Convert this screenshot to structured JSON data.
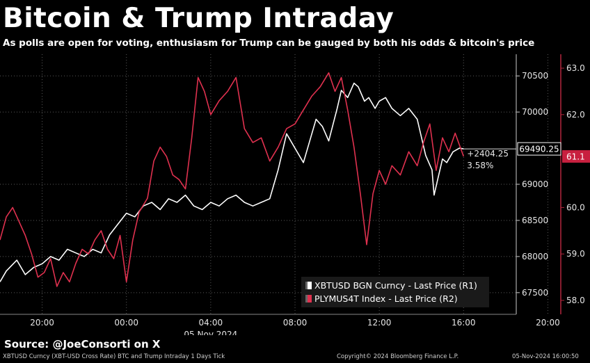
{
  "header": {
    "title": "Bitcoin & Trump Intraday",
    "subtitle": "As polls are open for voting, enthusiasm for Trump can be gauged by both his odds & bitcoin's price"
  },
  "source": "Source: @JoeConsorti on X",
  "footer": {
    "left": "XBTUSD Curncy (XBT-USD Cross Rate) BTC and Trump Intraday 1 Days  Tick",
    "center": "Copyright© 2024 Bloomberg Finance L.P.",
    "right": "05-Nov-2024 16:00:50"
  },
  "colors": {
    "btc": "#ffffff",
    "trump": "#e0314f",
    "background": "#000000"
  },
  "legend": {
    "btc": "XBTUSD BGN Curncy - Last Price (R1)",
    "trump": "PLYMUS4T Index - Last Price (R2)"
  },
  "chart_data": {
    "type": "line",
    "x_axis": {
      "ticks": [
        "20:00",
        "00:00",
        "04:00",
        "08:00",
        "12:00",
        "16:00",
        "20:00"
      ],
      "date_label": "05 Nov 2024",
      "start_hour": 18,
      "end_hour": 22.9
    },
    "right_axis_1": {
      "label": "R1",
      "ticks": [
        "70500",
        "70000",
        "69000",
        "68500",
        "68000",
        "67500"
      ],
      "range": [
        67200,
        70800
      ],
      "current_value": "69490.25",
      "change": "+2404.25",
      "change_pct": "3.58%"
    },
    "right_axis_2": {
      "label": "R2",
      "ticks": [
        "63.0",
        "62.0",
        "60.0",
        "59.0",
        "58.0"
      ],
      "range": [
        57.7,
        63.3
      ],
      "current_value": "61.1"
    },
    "series": [
      {
        "name": "XBTUSD BGN Curncy - Last Price (R1)",
        "axis": "R1",
        "x": [
          18.0,
          18.3,
          18.8,
          19.2,
          19.6,
          20.0,
          20.4,
          20.8,
          21.2,
          21.6,
          22.0,
          22.4,
          22.8,
          23.2,
          23.6,
          24.0,
          24.4,
          24.8,
          25.2,
          25.6,
          26.0,
          26.4,
          26.8,
          27.2,
          27.6,
          28.0,
          28.4,
          28.8,
          29.2,
          29.6,
          30.0,
          30.4,
          30.8,
          31.2,
          31.6,
          32.0,
          32.4,
          32.8,
          33.0,
          33.3,
          33.6,
          34.0,
          34.2,
          34.5,
          34.8,
          35.0,
          35.3,
          35.5,
          35.8,
          36.0,
          36.3,
          36.6,
          37.0,
          37.4,
          37.8,
          38.2,
          38.5,
          38.6,
          38.8,
          39.0,
          39.2,
          39.5,
          39.8,
          40.0
        ],
        "values": [
          67650,
          67800,
          67950,
          67750,
          67850,
          67900,
          68000,
          67950,
          68100,
          68050,
          68000,
          68100,
          68050,
          68300,
          68450,
          68600,
          68550,
          68700,
          68750,
          68650,
          68800,
          68750,
          68850,
          68700,
          68650,
          68750,
          68700,
          68800,
          68850,
          68750,
          68700,
          68750,
          68800,
          69200,
          69700,
          69500,
          69300,
          69700,
          69900,
          69800,
          69600,
          70050,
          70300,
          70200,
          70400,
          70350,
          70150,
          70200,
          70050,
          70150,
          70200,
          70050,
          69950,
          70050,
          69900,
          69400,
          69200,
          68850,
          69100,
          69350,
          69300,
          69450,
          69500,
          69490
        ]
      },
      {
        "name": "PLYMUS4T Index - Last Price (R2)",
        "axis": "R2",
        "x": [
          18.0,
          18.3,
          18.6,
          18.9,
          19.2,
          19.5,
          19.8,
          20.1,
          20.4,
          20.7,
          21.0,
          21.3,
          21.6,
          21.9,
          22.2,
          22.5,
          22.8,
          23.1,
          23.4,
          23.7,
          24.0,
          24.3,
          24.6,
          25.0,
          25.3,
          25.6,
          25.9,
          26.2,
          26.5,
          26.8,
          27.1,
          27.4,
          27.7,
          28.0,
          28.4,
          28.8,
          29.2,
          29.6,
          30.0,
          30.4,
          30.8,
          31.2,
          31.6,
          32.0,
          32.4,
          32.8,
          33.2,
          33.6,
          33.9,
          34.2,
          34.5,
          34.8,
          35.1,
          35.4,
          35.7,
          36.0,
          36.3,
          36.6,
          37.0,
          37.4,
          37.8,
          38.1,
          38.4,
          38.7,
          39.0,
          39.3,
          39.6,
          40.0
        ],
        "values": [
          59.3,
          59.8,
          60.0,
          59.7,
          59.4,
          59.0,
          58.5,
          58.6,
          58.9,
          58.3,
          58.6,
          58.4,
          58.8,
          59.1,
          59.0,
          59.3,
          59.5,
          59.1,
          58.9,
          59.4,
          58.4,
          59.3,
          59.9,
          60.2,
          61.0,
          61.3,
          61.1,
          60.7,
          60.6,
          60.4,
          61.5,
          62.8,
          62.5,
          62.0,
          62.3,
          62.5,
          62.8,
          61.7,
          61.4,
          61.5,
          61.0,
          61.3,
          61.7,
          61.8,
          62.1,
          62.4,
          62.6,
          62.9,
          62.5,
          62.8,
          62.1,
          61.3,
          60.3,
          59.2,
          60.3,
          60.8,
          60.5,
          60.9,
          60.7,
          61.2,
          60.9,
          61.4,
          61.8,
          60.8,
          61.5,
          61.2,
          61.6,
          61.1
        ]
      }
    ]
  }
}
